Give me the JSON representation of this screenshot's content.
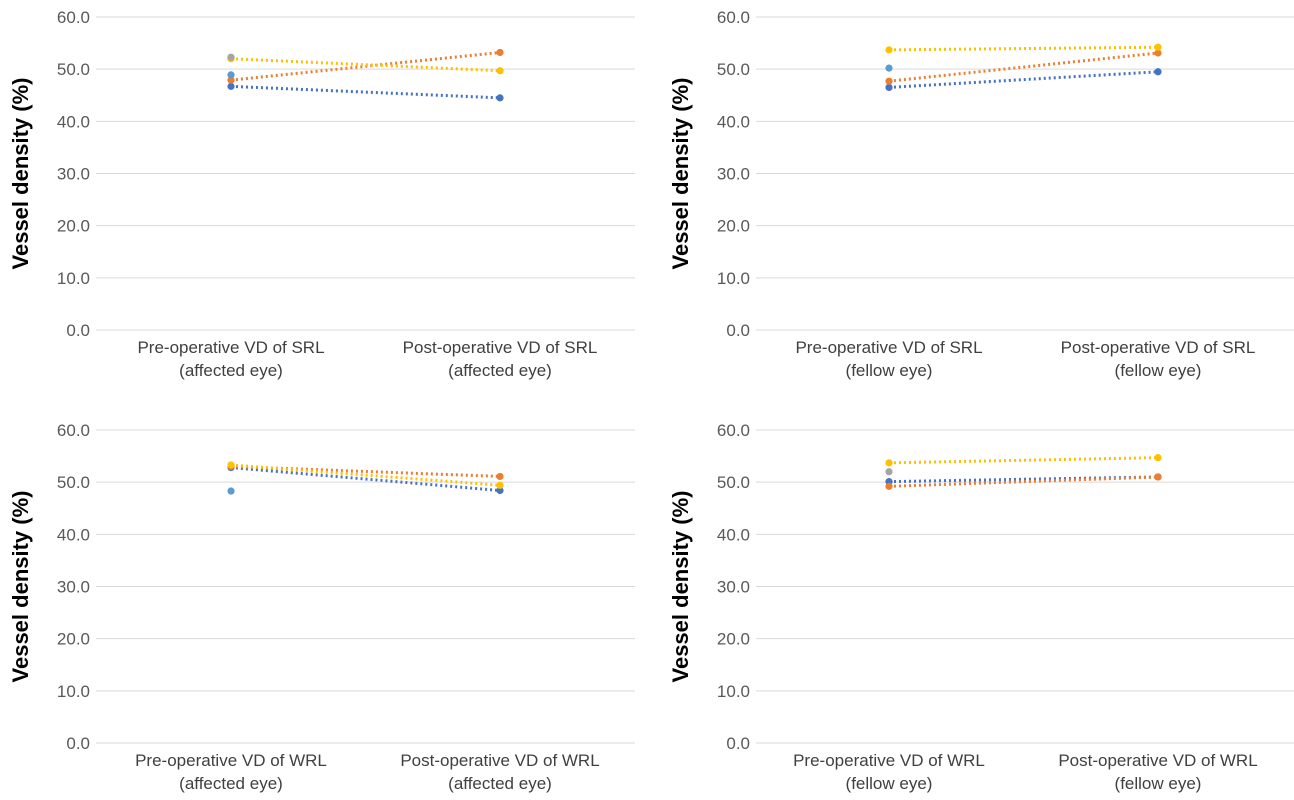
{
  "chart_data": [
    {
      "type": "line",
      "ylabel": "Vessel density (%)",
      "ylim": [
        0,
        60
      ],
      "yticks": [
        "0.0",
        "10.0",
        "20.0",
        "30.0",
        "40.0",
        "50.0",
        "60.0"
      ],
      "grid": true,
      "categories": [
        [
          "Pre-operative VD of SRL",
          "(affected eye)"
        ],
        [
          "Post-operative VD of SRL",
          "(affected eye)"
        ]
      ],
      "series": [
        {
          "color": "#4472c4",
          "values": [
            46.7,
            44.5
          ]
        },
        {
          "color": "#ed7d31",
          "values": [
            47.9,
            53.2
          ]
        },
        {
          "color": "#ffc000",
          "values": [
            52.0,
            49.7
          ]
        },
        {
          "color": "#a5a5a5",
          "values": [
            52.3,
            null
          ]
        },
        {
          "color": "#5b9bd5",
          "values": [
            48.9,
            null
          ]
        }
      ]
    },
    {
      "type": "line",
      "ylabel": "Vessel density (%)",
      "ylim": [
        0,
        60
      ],
      "yticks": [
        "0.0",
        "10.0",
        "20.0",
        "30.0",
        "40.0",
        "50.0",
        "60.0"
      ],
      "grid": true,
      "categories": [
        [
          "Pre-operative VD of SRL",
          "(fellow eye)"
        ],
        [
          "Post-operative VD of SRL",
          "(fellow eye)"
        ]
      ],
      "series": [
        {
          "color": "#4472c4",
          "values": [
            46.5,
            49.5
          ]
        },
        {
          "color": "#ed7d31",
          "values": [
            47.7,
            53.1
          ]
        },
        {
          "color": "#ffc000",
          "values": [
            53.7,
            54.2
          ]
        },
        {
          "color": "#5b9bd5",
          "values": [
            50.2,
            null
          ]
        }
      ]
    },
    {
      "type": "line",
      "ylabel": "Vessel density (%)",
      "ylim": [
        0,
        60
      ],
      "yticks": [
        "0.0",
        "10.0",
        "20.0",
        "30.0",
        "40.0",
        "50.0",
        "60.0"
      ],
      "grid": true,
      "categories": [
        [
          "Pre-operative VD of WRL",
          "(affected eye)"
        ],
        [
          "Post-operative VD of WRL",
          "(affected eye)"
        ]
      ],
      "series": [
        {
          "color": "#4472c4",
          "values": [
            52.8,
            48.4
          ]
        },
        {
          "color": "#ed7d31",
          "values": [
            53.0,
            51.1
          ]
        },
        {
          "color": "#ffc000",
          "values": [
            53.3,
            49.4
          ]
        },
        {
          "color": "#5b9bd5",
          "values": [
            48.3,
            null
          ]
        }
      ]
    },
    {
      "type": "line",
      "ylabel": "Vessel density (%)",
      "ylim": [
        0,
        60
      ],
      "yticks": [
        "0.0",
        "10.0",
        "20.0",
        "30.0",
        "40.0",
        "50.0",
        "60.0"
      ],
      "grid": true,
      "categories": [
        [
          "Pre-operative VD of WRL",
          "(fellow eye)"
        ],
        [
          "Post-operative VD of WRL",
          "(fellow eye)"
        ]
      ],
      "series": [
        {
          "color": "#4472c4",
          "values": [
            50.1,
            51.0
          ]
        },
        {
          "color": "#ed7d31",
          "values": [
            49.2,
            51.0
          ]
        },
        {
          "color": "#ffc000",
          "values": [
            53.7,
            54.7
          ]
        },
        {
          "color": "#a5a5a5",
          "values": [
            52.0,
            null
          ]
        }
      ]
    }
  ]
}
